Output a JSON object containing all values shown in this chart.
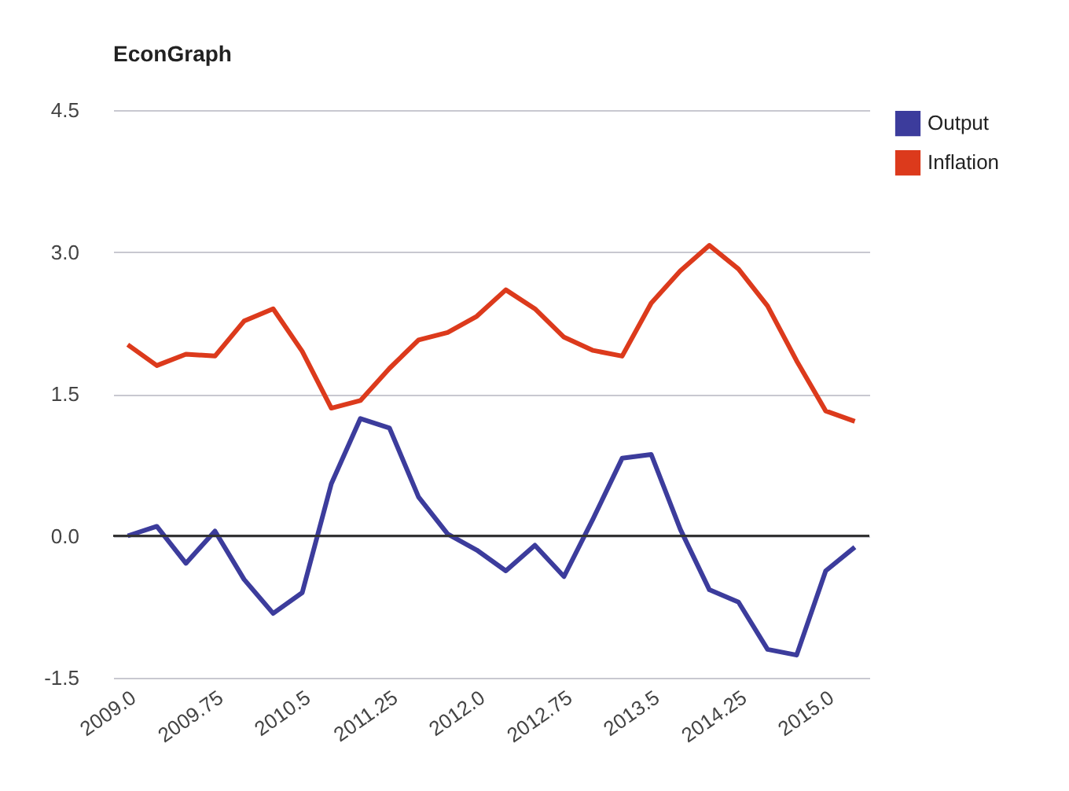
{
  "chart_data": {
    "type": "line",
    "title": "EconGraph",
    "categories": [
      "2009.0",
      null,
      null,
      "2009.75",
      null,
      null,
      "2010.5",
      null,
      null,
      "2011.25",
      null,
      null,
      "2012.0",
      null,
      null,
      "2012.75",
      null,
      null,
      "2013.5",
      null,
      null,
      "2014.25",
      null,
      null,
      "2015.0",
      null
    ],
    "series": [
      {
        "name": "Output",
        "color": "#3c3c9c",
        "values": [
          0.0,
          0.1,
          -0.29,
          0.05,
          -0.46,
          -0.82,
          -0.6,
          0.55,
          1.24,
          1.14,
          0.41,
          0.02,
          -0.15,
          -0.37,
          -0.1,
          -0.43,
          0.18,
          0.82,
          0.86,
          0.07,
          -0.57,
          -0.7,
          -1.2,
          -1.26,
          -0.37,
          -0.12
        ]
      },
      {
        "name": "Inflation",
        "color": "#dc3a1c",
        "values": [
          2.02,
          1.8,
          1.92,
          1.9,
          2.27,
          2.4,
          1.95,
          1.35,
          1.43,
          1.77,
          2.07,
          2.15,
          2.32,
          2.6,
          2.4,
          2.1,
          1.96,
          1.9,
          2.46,
          2.8,
          3.07,
          2.82,
          2.43,
          1.85,
          1.32,
          1.21
        ]
      }
    ],
    "ylim": [
      -1.5,
      4.5
    ],
    "yticks": [
      4.5,
      {
        "value": 3,
        "label": "3.0"
      },
      1.5,
      {
        "value": 0,
        "label": "0.0"
      },
      -1.5
    ],
    "ref_lines": [
      {
        "axis": "y",
        "value": 0,
        "color": "#333333"
      }
    ],
    "grid": "y",
    "legend": "top right",
    "marker": "none",
    "line_style": "solid"
  }
}
